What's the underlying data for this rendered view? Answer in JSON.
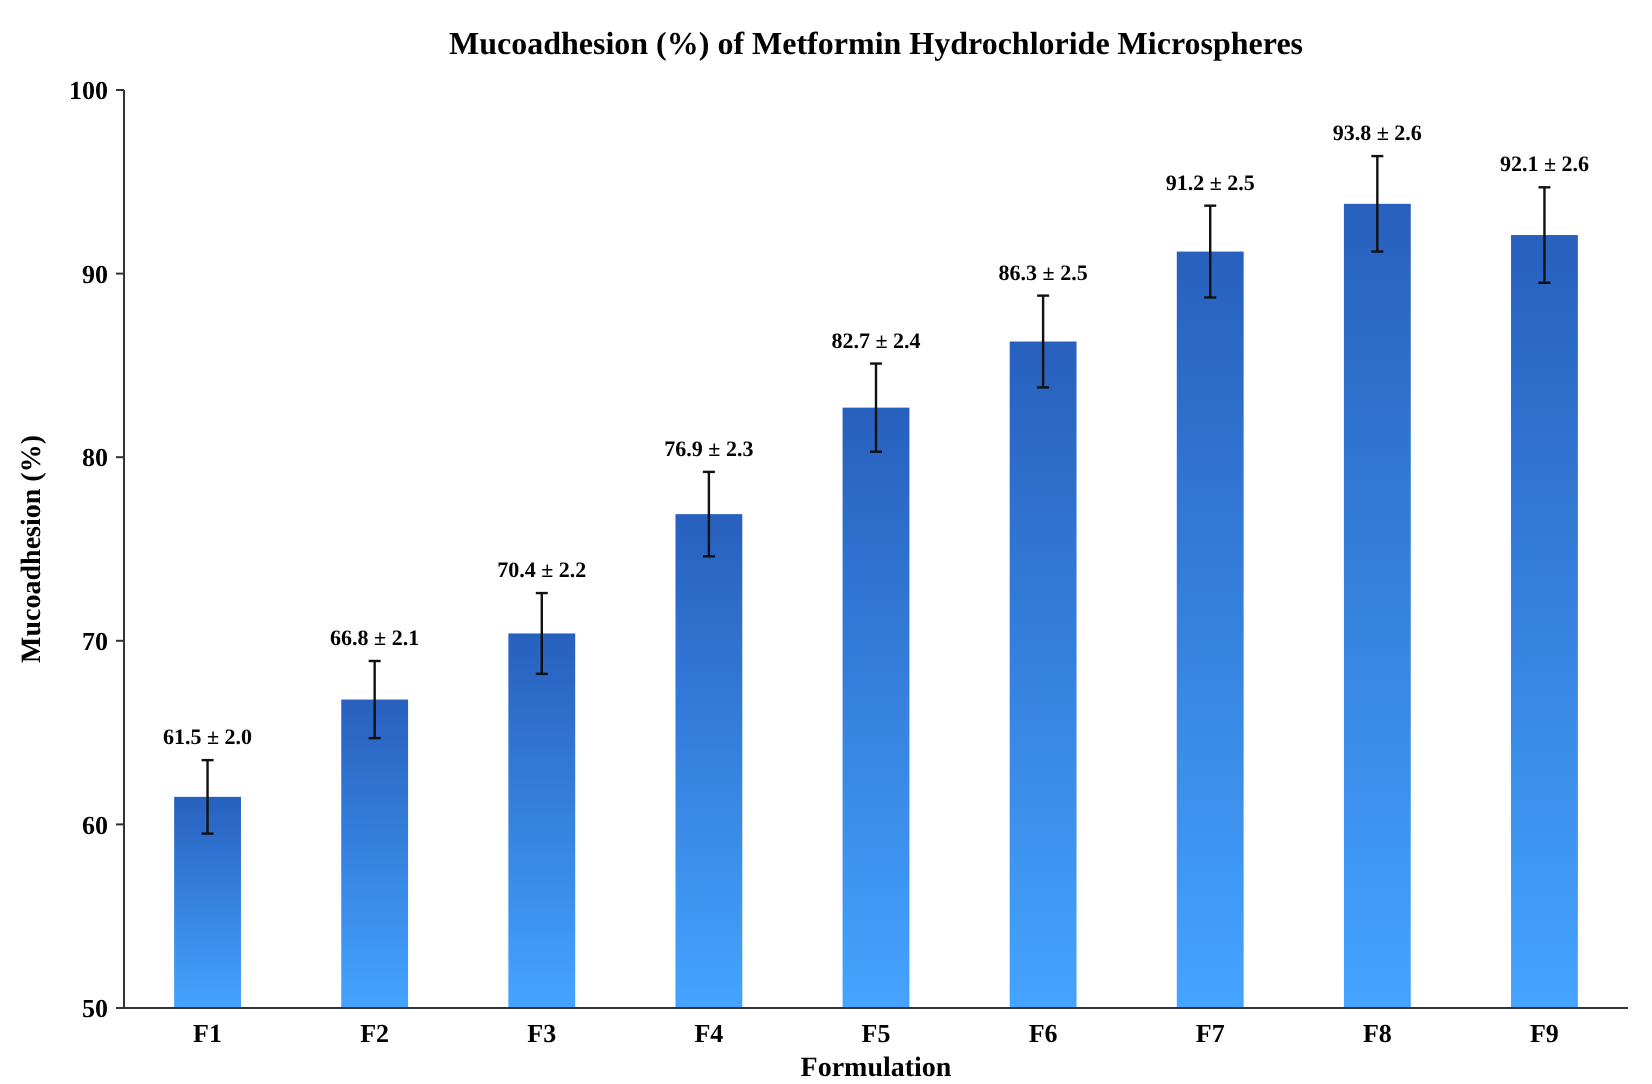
{
  "chart_data": {
    "type": "bar",
    "title": "Mucoadhesion (%) of Metformin Hydrochloride Microspheres",
    "xlabel": "Formulation",
    "ylabel": "Mucoadhesion (%)",
    "categories": [
      "F1",
      "F2",
      "F3",
      "F4",
      "F5",
      "F6",
      "F7",
      "F8",
      "F9"
    ],
    "values": [
      61.5,
      66.8,
      70.4,
      76.9,
      82.7,
      86.3,
      91.2,
      93.8,
      92.1
    ],
    "errors": [
      2.0,
      2.1,
      2.2,
      2.3,
      2.4,
      2.5,
      2.5,
      2.6,
      2.6
    ],
    "value_labels": [
      "61.5 ± 2.0",
      "66.8 ± 2.1",
      "70.4 ± 2.2",
      "76.9 ± 2.3",
      "82.7 ± 2.4",
      "86.3 ± 2.5",
      "91.2 ± 2.5",
      "93.8 ± 2.6",
      "92.1 ± 2.6"
    ],
    "color": "#2c6bd4",
    "ylim": [
      50,
      100
    ],
    "yticks": [
      50,
      60,
      70,
      80,
      90,
      100
    ],
    "grid": false
  }
}
